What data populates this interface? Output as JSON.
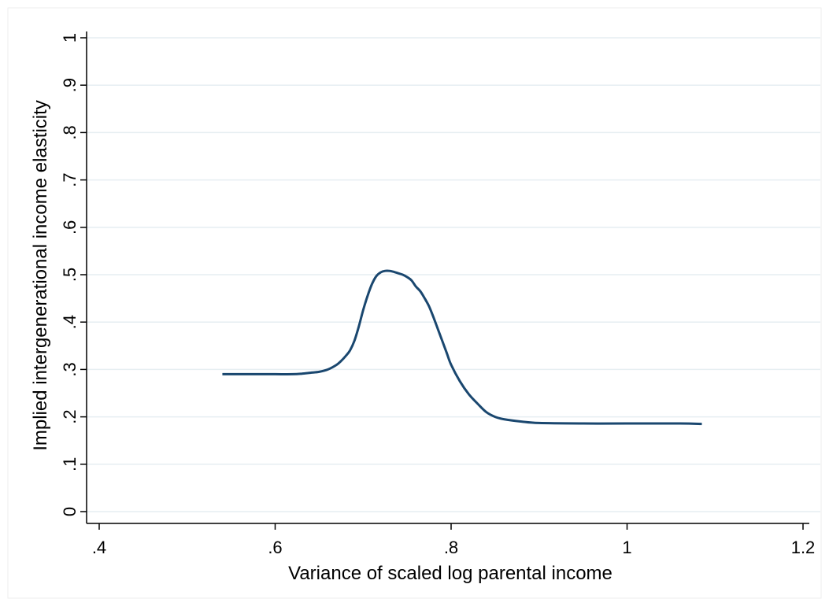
{
  "chart_data": {
    "type": "line",
    "title": "",
    "xlabel": "Variance of scaled log parental income",
    "ylabel": "Implied intergenerational income elasticity",
    "xlim": [
      0.4,
      1.2
    ],
    "ylim": [
      0,
      1
    ],
    "xticks": [
      0.4,
      0.6,
      0.8,
      1,
      1.2
    ],
    "xtick_labels": [
      ".4",
      ".6",
      ".8",
      "1",
      "1.2"
    ],
    "yticks": [
      0,
      0.1,
      0.2,
      0.3,
      0.4,
      0.5,
      0.6,
      0.7,
      0.8,
      0.9,
      1
    ],
    "ytick_labels": [
      "0",
      ".1",
      ".2",
      ".3",
      ".4",
      ".5",
      ".6",
      ".7",
      ".8",
      ".9",
      "1"
    ],
    "grid": true,
    "legend": "none",
    "colors": {
      "line": "#1a476f",
      "grid": "#e6eef2"
    },
    "series": [
      {
        "x": [
          0.54,
          0.56,
          0.58,
          0.6,
          0.62,
          0.63,
          0.64,
          0.65,
          0.66,
          0.67,
          0.675,
          0.68,
          0.685,
          0.69,
          0.695,
          0.7,
          0.705,
          0.71,
          0.715,
          0.72,
          0.725,
          0.73,
          0.735,
          0.74,
          0.745,
          0.75,
          0.755,
          0.76,
          0.765,
          0.77,
          0.775,
          0.78,
          0.785,
          0.79,
          0.795,
          0.8,
          0.81,
          0.82,
          0.83,
          0.84,
          0.85,
          0.86,
          0.88,
          0.9,
          0.95,
          1.0,
          1.06,
          1.085
        ],
        "y": [
          0.29,
          0.29,
          0.29,
          0.29,
          0.29,
          0.291,
          0.293,
          0.295,
          0.3,
          0.31,
          0.318,
          0.328,
          0.34,
          0.36,
          0.39,
          0.425,
          0.455,
          0.48,
          0.497,
          0.505,
          0.508,
          0.508,
          0.506,
          0.503,
          0.5,
          0.495,
          0.488,
          0.475,
          0.465,
          0.45,
          0.433,
          0.41,
          0.385,
          0.36,
          0.335,
          0.31,
          0.275,
          0.248,
          0.228,
          0.21,
          0.2,
          0.195,
          0.19,
          0.187,
          0.186,
          0.186,
          0.186,
          0.185
        ]
      }
    ]
  }
}
